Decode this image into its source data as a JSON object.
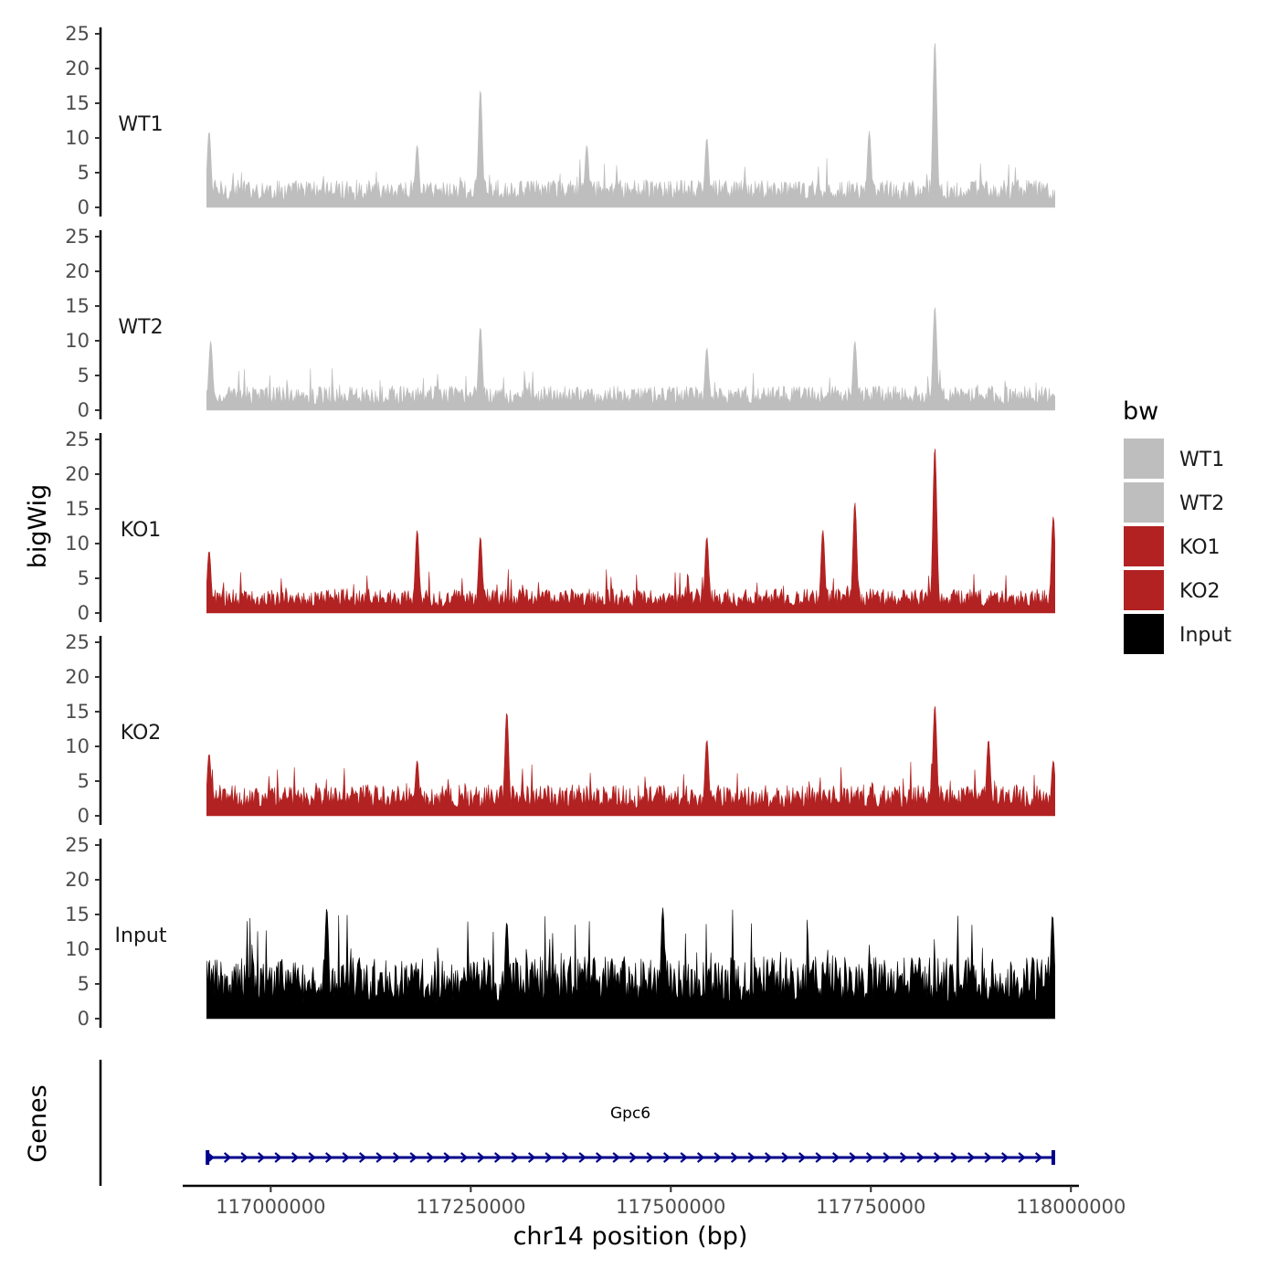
{
  "chart_data": {
    "type": "area",
    "title": "",
    "xlabel": "chr14 position (bp)",
    "ylabel": "bigWig",
    "genes_label": "Genes",
    "xlim": [
      116890000,
      118010000
    ],
    "data_range": [
      116920000,
      117980000
    ],
    "ylim": [
      0,
      25
    ],
    "y_ticks": [
      0,
      5,
      10,
      15,
      20,
      25
    ],
    "x_ticks": [
      117000000,
      117250000,
      117500000,
      117750000,
      118000000
    ],
    "x_tick_labels": [
      "117000000",
      "117250000",
      "117500000",
      "117750000",
      "118000000"
    ],
    "legend": {
      "title": "bw",
      "entries": [
        {
          "name": "WT1",
          "color": "#bebebe"
        },
        {
          "name": "WT2",
          "color": "#bebebe"
        },
        {
          "name": "KO1",
          "color": "#b22222"
        },
        {
          "name": "KO2",
          "color": "#b22222"
        },
        {
          "name": "Input",
          "color": "#000000"
        }
      ]
    },
    "series": [
      {
        "name": "WT1",
        "color": "#bebebe",
        "typical_max": 4.0,
        "peaks": [
          [
            116923000,
            11
          ],
          [
            117183000,
            9
          ],
          [
            117262000,
            17
          ],
          [
            117395000,
            9
          ],
          [
            117545000,
            10
          ],
          [
            117748000,
            11
          ],
          [
            117830000,
            24
          ]
        ]
      },
      {
        "name": "WT2",
        "color": "#bebebe",
        "typical_max": 3.5,
        "peaks": [
          [
            116925000,
            10
          ],
          [
            117262000,
            12
          ],
          [
            117545000,
            9
          ],
          [
            117730000,
            10
          ],
          [
            117830000,
            15
          ]
        ]
      },
      {
        "name": "KO1",
        "color": "#b22222",
        "typical_max": 3.5,
        "peaks": [
          [
            116923000,
            9
          ],
          [
            117183000,
            12
          ],
          [
            117262000,
            11
          ],
          [
            117545000,
            11
          ],
          [
            117690000,
            12
          ],
          [
            117730000,
            16
          ],
          [
            117830000,
            24
          ],
          [
            117978000,
            14
          ]
        ]
      },
      {
        "name": "KO2",
        "color": "#b22222",
        "typical_max": 4.5,
        "peaks": [
          [
            116923000,
            9
          ],
          [
            117183000,
            8
          ],
          [
            117295000,
            15
          ],
          [
            117545000,
            11
          ],
          [
            117830000,
            16
          ],
          [
            117897000,
            11
          ],
          [
            117978000,
            8
          ]
        ]
      },
      {
        "name": "Input",
        "color": "#000000",
        "typical_max": 9.0,
        "peaks": [
          [
            117070000,
            16
          ],
          [
            117295000,
            14
          ],
          [
            117490000,
            16
          ],
          [
            117977000,
            15
          ]
        ]
      }
    ],
    "genes": [
      {
        "name": "Gpc6",
        "start": 116921000,
        "end": 117978000,
        "strand": "+",
        "color": "#00008b"
      }
    ]
  }
}
